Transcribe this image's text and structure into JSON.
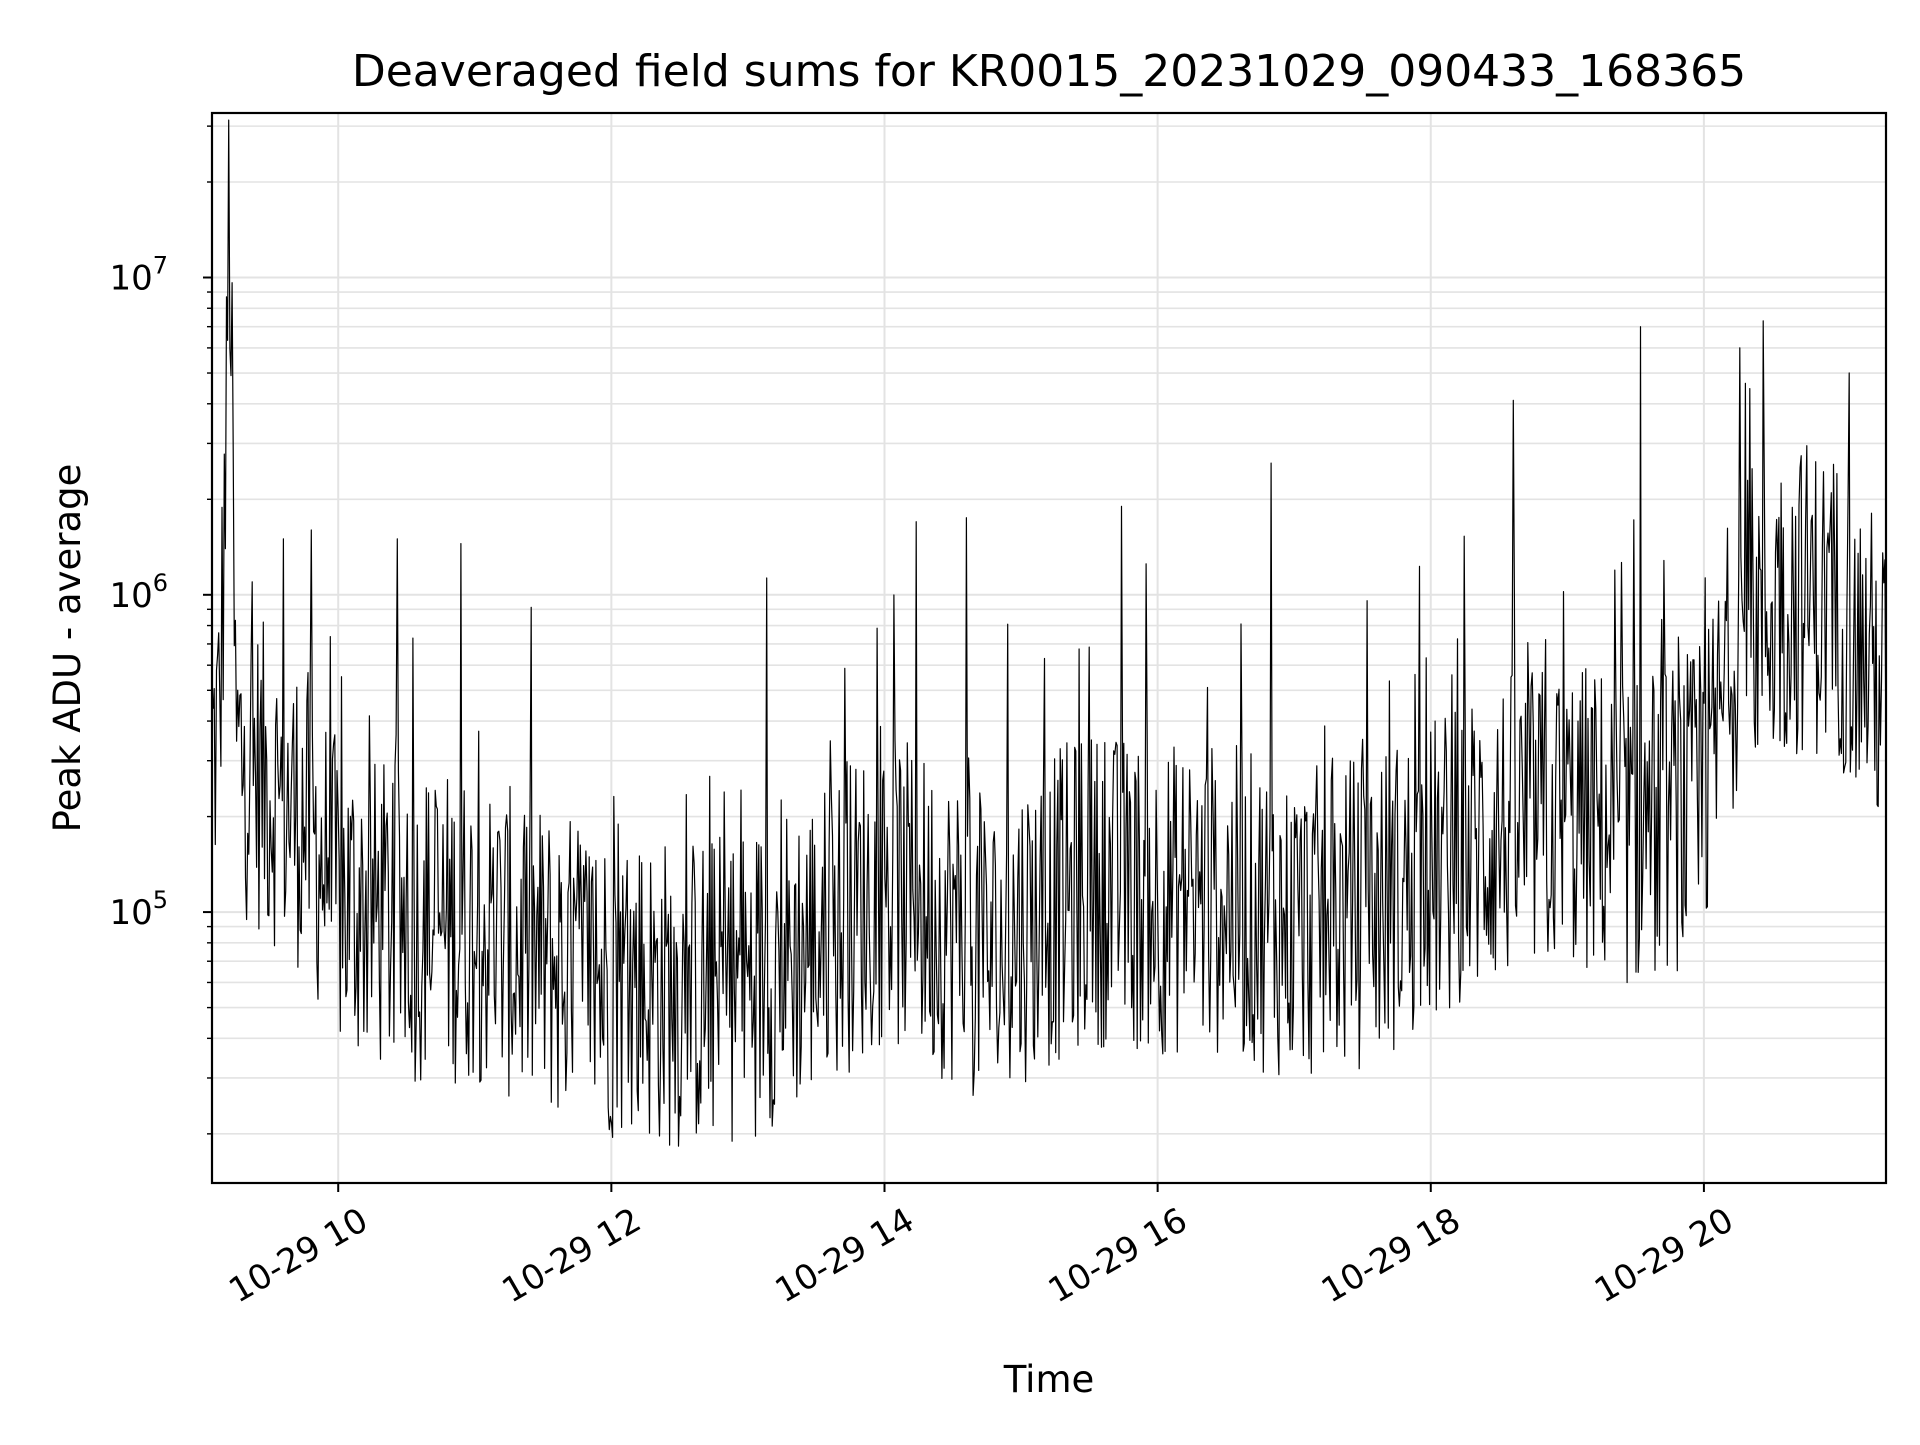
{
  "chart_data": {
    "type": "line",
    "title": "Deaveraged field sums for KR0015_20231029_090433_168365",
    "xlabel": "Time",
    "ylabel": "Peak ADU - average",
    "x_axis": {
      "type": "datetime",
      "range": [
        "2023-10-29 09:04:33",
        "2023-10-29 21:20:00"
      ],
      "ticks": [
        {
          "value": "2023-10-29 10:00",
          "label": "10-29 10"
        },
        {
          "value": "2023-10-29 12:00",
          "label": "10-29 12"
        },
        {
          "value": "2023-10-29 14:00",
          "label": "10-29 14"
        },
        {
          "value": "2023-10-29 16:00",
          "label": "10-29 16"
        },
        {
          "value": "2023-10-29 18:00",
          "label": "10-29 18"
        },
        {
          "value": "2023-10-29 20:00",
          "label": "10-29 20"
        }
      ]
    },
    "y_axis": {
      "scale": "log",
      "range": [
        14000,
        33000000
      ],
      "ticks": [
        {
          "value": 100000,
          "base": "10",
          "exp": "5"
        },
        {
          "value": 1000000,
          "base": "10",
          "exp": "6"
        },
        {
          "value": 10000000,
          "base": "10",
          "exp": "7"
        }
      ]
    },
    "grid": true,
    "series": [
      {
        "color": "#000000",
        "points": [
          [
            "2023-10-29 09:04",
            300000
          ],
          [
            "2023-10-29 09:08",
            400000
          ],
          [
            "2023-10-29 09:11",
            3500000
          ],
          [
            "2023-10-29 09:12",
            23000000
          ],
          [
            "2023-10-29 09:15",
            320000
          ],
          [
            "2023-10-29 09:30",
            250000
          ],
          [
            "2023-10-29 09:45",
            200000
          ],
          [
            "2023-10-29 10:00",
            110000
          ],
          [
            "2023-10-29 10:30",
            90000
          ],
          [
            "2023-10-29 11:00",
            90000
          ],
          [
            "2023-10-29 11:30",
            70000
          ],
          [
            "2023-10-29 12:00",
            60000
          ],
          [
            "2023-10-29 12:30",
            55000
          ],
          [
            "2023-10-29 13:00",
            60000
          ],
          [
            "2023-10-29 13:30",
            80000
          ],
          [
            "2023-10-29 14:00",
            120000
          ],
          [
            "2023-10-29 14:30",
            90000
          ],
          [
            "2023-10-29 14:50",
            70000
          ],
          [
            "2023-10-29 15:00",
            90000
          ],
          [
            "2023-10-29 15:30",
            120000
          ],
          [
            "2023-10-29 16:00",
            110000
          ],
          [
            "2023-10-29 16:30",
            110000
          ],
          [
            "2023-10-29 17:00",
            90000
          ],
          [
            "2023-10-29 17:30",
            100000
          ],
          [
            "2023-10-29 18:00",
            130000
          ],
          [
            "2023-10-29 18:30",
            180000
          ],
          [
            "2023-10-29 19:00",
            200000
          ],
          [
            "2023-10-29 19:30",
            180000
          ],
          [
            "2023-10-29 20:00",
            220000
          ],
          [
            "2023-10-29 20:15",
            800000
          ],
          [
            "2023-10-29 20:30",
            900000
          ],
          [
            "2023-10-29 20:45",
            1000000
          ],
          [
            "2023-10-29 21:00",
            900000
          ],
          [
            "2023-10-29 21:20",
            500000
          ]
        ],
        "spikes": [
          [
            "2023-10-29 09:36",
            1500000
          ],
          [
            "2023-10-29 09:48",
            1600000
          ],
          [
            "2023-10-29 10:26",
            1500000
          ],
          [
            "2023-10-29 10:54",
            1450000
          ],
          [
            "2023-10-29 13:08",
            1130000
          ],
          [
            "2023-10-29 14:14",
            1700000
          ],
          [
            "2023-10-29 14:36",
            1750000
          ],
          [
            "2023-10-29 15:44",
            1900000
          ],
          [
            "2023-10-29 16:50",
            2600000
          ],
          [
            "2023-10-29 18:36",
            4100000
          ],
          [
            "2023-10-29 19:32",
            7000000
          ],
          [
            "2023-10-29 20:16",
            6000000
          ],
          [
            "2023-10-29 20:26",
            7300000
          ],
          [
            "2023-10-29 21:04",
            5000000
          ]
        ]
      }
    ]
  }
}
